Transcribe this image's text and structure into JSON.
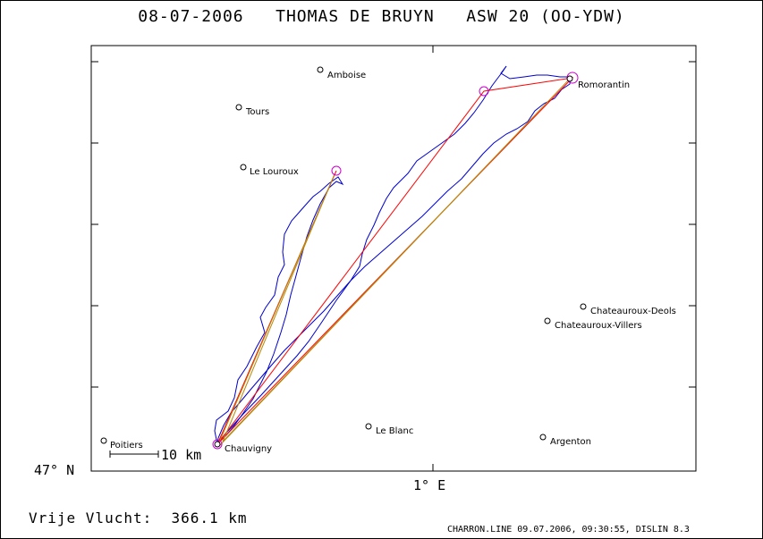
{
  "header": {
    "title": "08-07-2006   THOMAS DE BRUYN   ASW 20 (OO-YDW)"
  },
  "axes": {
    "lat_label": "47° N",
    "lon_label": "1° E"
  },
  "scale": {
    "label": "10 km"
  },
  "cities": [
    {
      "name": "Amboise"
    },
    {
      "name": "Tours"
    },
    {
      "name": "Le Louroux"
    },
    {
      "name": "Romorantin"
    },
    {
      "name": "Chateauroux-Deols"
    },
    {
      "name": "Chateauroux-Villers"
    },
    {
      "name": "Le Blanc"
    },
    {
      "name": "Argenton"
    },
    {
      "name": "Poitiers"
    },
    {
      "name": "Chauvigny"
    }
  ],
  "summary": {
    "free_flight": "Vrije Vlucht:  366.1 km"
  },
  "footer": {
    "text": "CHARRON.LINE 09.07.2006, 09:30:55, DISLIN 8.3"
  },
  "colors": {
    "track": "#0000cc",
    "task": "#ff0000",
    "optimized": "#b8860b",
    "turnpoint": "#cc00cc"
  }
}
